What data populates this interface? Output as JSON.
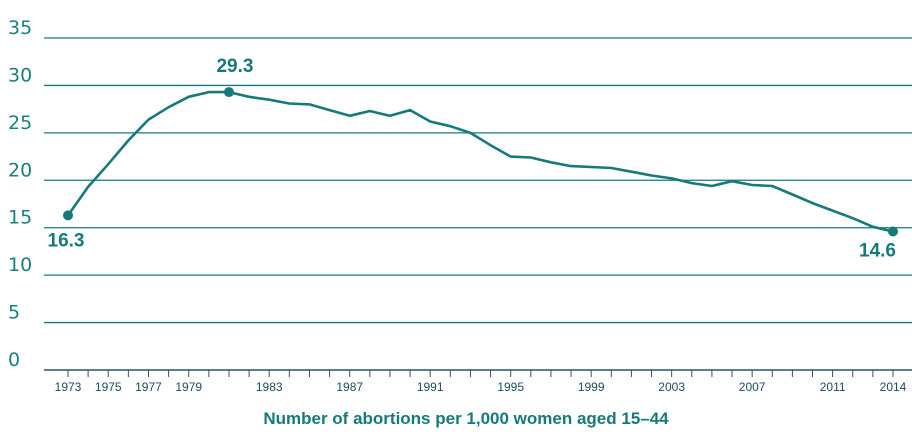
{
  "chart_data": {
    "type": "line",
    "xlabel": "Number of abortions per 1,000 women aged 15–44",
    "ylim": [
      0,
      35
    ],
    "y_ticks": [
      "0",
      "5",
      "10",
      "15",
      "20",
      "25",
      "30",
      "35"
    ],
    "x_tick_labels": [
      "1973",
      "1975",
      "1977",
      "1979",
      "1983",
      "1987",
      "1991",
      "1995",
      "1999",
      "2003",
      "2007",
      "2011",
      "2014"
    ],
    "grid": true,
    "color": "#167a7a",
    "x": [
      1973,
      1974,
      1975,
      1976,
      1977,
      1978,
      1979,
      1980,
      1981,
      1982,
      1983,
      1984,
      1985,
      1986,
      1987,
      1988,
      1989,
      1990,
      1991,
      1992,
      1993,
      1994,
      1995,
      1996,
      1997,
      1998,
      1999,
      2000,
      2001,
      2002,
      2003,
      2004,
      2005,
      2006,
      2007,
      2008,
      2009,
      2010,
      2011,
      2012,
      2013,
      2014
    ],
    "values": [
      16.3,
      19.3,
      21.7,
      24.2,
      26.4,
      27.7,
      28.8,
      29.3,
      29.3,
      28.8,
      28.5,
      28.1,
      28.0,
      27.4,
      26.8,
      27.3,
      26.8,
      27.4,
      26.2,
      25.7,
      25.0,
      23.7,
      22.5,
      22.4,
      21.9,
      21.5,
      21.4,
      21.3,
      20.9,
      20.5,
      20.2,
      19.7,
      19.4,
      19.9,
      19.5,
      19.4,
      18.5,
      17.6,
      16.8,
      16.0,
      15.1,
      14.6
    ],
    "annotations": [
      {
        "x": 1973,
        "y": 16.3,
        "text": "16.3"
      },
      {
        "x": 1981,
        "y": 29.3,
        "text": "29.3"
      },
      {
        "x": 2014,
        "y": 14.6,
        "text": "14.6"
      }
    ]
  }
}
